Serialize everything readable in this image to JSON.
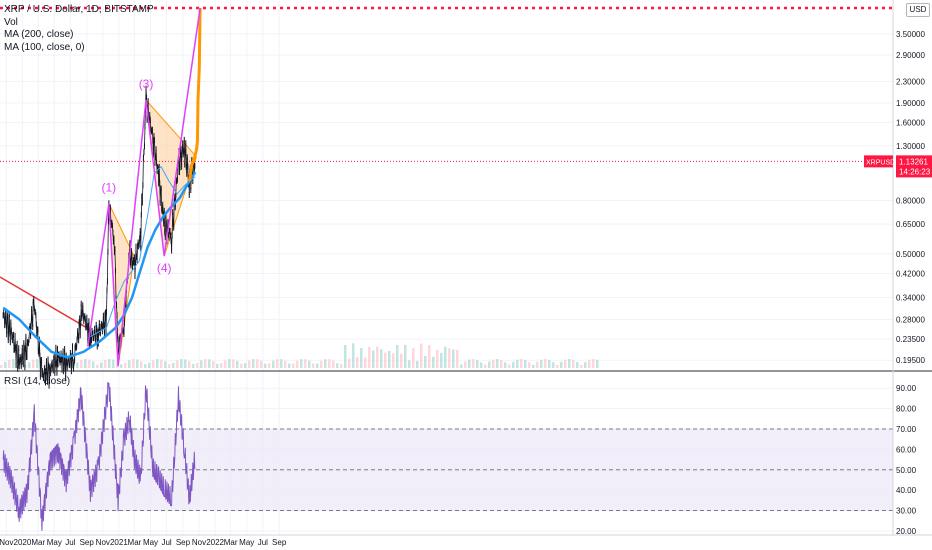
{
  "legend": {
    "symbol": "XRP / U.S. Dollar, 1D, BITSTAMP",
    "vol": "Vol",
    "ma200": "MA (200, close)",
    "ma100": "MA (100, close, 0)"
  },
  "rsi_label": "RSI (14, close)",
  "currency_button": "USD",
  "price_tag": {
    "symbol": "XRPUSD",
    "price": "1.13261",
    "countdown": "14:26:23"
  },
  "colors": {
    "candle_up": "#787b86",
    "candle_down": "#131722",
    "projection": "#ff9800",
    "ma200": "#2196f3",
    "ma100": "#42a5f5",
    "trendline": "#e53935",
    "zigzag": "#e040fb",
    "triangle_fill": "#ffcc99",
    "triangle_stroke": "#ff9800",
    "rsi_line": "#7e57c2",
    "rsi_band": "#ede7f6",
    "price_tag_bg": "#ff1744"
  },
  "chart_data": [
    {
      "type": "line",
      "scale": "log",
      "x_labels": [
        "Nov",
        "2020",
        "Mar",
        "May",
        "Jul",
        "Sep",
        "Nov",
        "2021",
        "Mar",
        "May",
        "Jul",
        "Sep",
        "Nov",
        "2022",
        "Mar",
        "May",
        "Jul",
        "Sep"
      ],
      "y_ticks": [
        "3.50000",
        "2.90000",
        "2.30000",
        "1.90000",
        "1.60000",
        "1.30000",
        "0.80000",
        "0.65000",
        "0.50000",
        "0.42000",
        "0.34000",
        "0.28000",
        "0.23500",
        "0.19500"
      ],
      "last_price": 1.13261,
      "resistance_level": 4.4,
      "wave_labels": [
        "(1)",
        "(3)",
        "(4)"
      ],
      "series": [
        {
          "name": "XRPUSD",
          "x": [
            "2019-10-20",
            "2019-11-20",
            "2019-12-20",
            "2020-01-20",
            "2020-02-15",
            "2020-03-15",
            "2020-04-15",
            "2020-05-15",
            "2020-06-15",
            "2020-07-15",
            "2020-08-15",
            "2020-09-15",
            "2020-10-15",
            "2020-11-15",
            "2020-11-24",
            "2020-12-15",
            "2020-12-29",
            "2021-01-20",
            "2021-02-10",
            "2021-03-01",
            "2021-03-25",
            "2021-04-14",
            "2021-05-10",
            "2021-06-01",
            "2021-06-22",
            "2021-07-20",
            "2021-08-15",
            "2021-09-06",
            "2021-09-25",
            "2021-10-18"
          ],
          "y": [
            0.29,
            0.25,
            0.19,
            0.22,
            0.32,
            0.17,
            0.18,
            0.2,
            0.19,
            0.2,
            0.3,
            0.24,
            0.25,
            0.28,
            0.78,
            0.55,
            0.21,
            0.27,
            0.5,
            0.45,
            0.6,
            1.95,
            1.4,
            1.0,
            0.65,
            0.58,
            1.1,
            1.3,
            0.95,
            1.13
          ]
        },
        {
          "name": "MA (200, close)",
          "x": [
            "2019-10-20",
            "2019-12-20",
            "2020-02-20",
            "2020-04-20",
            "2020-06-20",
            "2020-08-20",
            "2020-10-20",
            "2020-12-20",
            "2021-01-20",
            "2021-02-20",
            "2021-03-20",
            "2021-04-20",
            "2021-05-20",
            "2021-06-20",
            "2021-07-20",
            "2021-08-20",
            "2021-09-20",
            "2021-10-18"
          ],
          "y": [
            0.31,
            0.28,
            0.24,
            0.21,
            0.2,
            0.21,
            0.23,
            0.26,
            0.29,
            0.34,
            0.42,
            0.53,
            0.62,
            0.7,
            0.76,
            0.82,
            0.93,
            1.03
          ]
        },
        {
          "name": "MA (100, close, 0)",
          "x": [
            "2020-09-15",
            "2020-11-15",
            "2020-12-20",
            "2021-01-20",
            "2021-02-20",
            "2021-03-20",
            "2021-04-20",
            "2021-05-15",
            "2021-06-10",
            "2021-07-10",
            "2021-08-10",
            "2021-09-10",
            "2021-10-18"
          ],
          "y": [
            0.24,
            0.26,
            0.33,
            0.39,
            0.43,
            0.47,
            0.7,
            1.02,
            1.08,
            0.95,
            0.85,
            0.92,
            0.99
          ]
        },
        {
          "name": "Projection",
          "x": [
            "2021-09-25",
            "2021-10-05",
            "2021-10-15",
            "2021-10-22",
            "2021-10-26",
            "2021-10-28",
            "2021-11-02",
            "2021-11-05"
          ],
          "y": [
            0.95,
            1.1,
            1.17,
            1.25,
            1.35,
            1.95,
            2.6,
            4.4
          ]
        }
      ]
    },
    {
      "type": "line",
      "title": "RSI (14, close)",
      "y_ticks": [
        "90.00",
        "80.00",
        "70.00",
        "60.00",
        "50.00",
        "40.00",
        "30.00",
        "20.00"
      ],
      "ylim": [
        18,
        95
      ],
      "bands": [
        30,
        50,
        70
      ],
      "series": [
        {
          "name": "RSI",
          "x": [
            "2019-10-20",
            "2019-11-20",
            "2019-12-20",
            "2020-01-20",
            "2020-02-15",
            "2020-03-15",
            "2020-04-15",
            "2020-05-15",
            "2020-06-15",
            "2020-07-15",
            "2020-08-10",
            "2020-09-15",
            "2020-10-15",
            "2020-11-24",
            "2020-12-29",
            "2021-01-20",
            "2021-02-10",
            "2021-03-01",
            "2021-03-25",
            "2021-04-14",
            "2021-05-10",
            "2021-06-01",
            "2021-06-22",
            "2021-07-20",
            "2021-08-15",
            "2021-09-06",
            "2021-09-25",
            "2021-10-18"
          ],
          "y": [
            55,
            45,
            30,
            40,
            78,
            25,
            55,
            60,
            45,
            65,
            88,
            40,
            52,
            92,
            35,
            65,
            75,
            55,
            45,
            90,
            50,
            45,
            40,
            35,
            85,
            60,
            35,
            57
          ]
        }
      ]
    }
  ]
}
